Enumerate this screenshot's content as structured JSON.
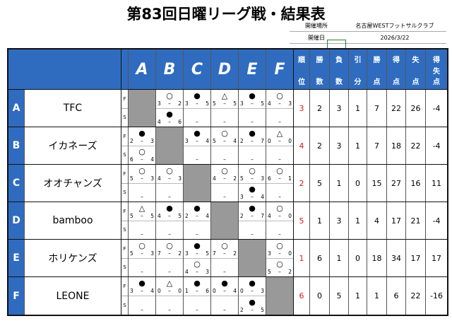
{
  "title": "第83回日曜リーグ戦・結果表",
  "info": [
    {
      "label": "開催場所",
      "value": "名古屋WESTフットサルクラブ"
    },
    {
      "label": "開催日",
      "value": "2026/3/22"
    }
  ],
  "header": {
    "opponents": [
      "A",
      "B",
      "C",
      "D",
      "E",
      "F"
    ],
    "stats": [
      [
        "順",
        "位"
      ],
      [
        "勝",
        "数"
      ],
      [
        "負",
        "数"
      ],
      [
        "引",
        "分"
      ],
      [
        "勝",
        "点"
      ],
      [
        "得",
        "点"
      ],
      [
        "失",
        "点"
      ],
      [
        "得",
        "失",
        "点"
      ]
    ]
  },
  "half_labels": [
    "F",
    "S"
  ],
  "dash": "–",
  "colors": {
    "header": "#2f6cc0",
    "rank": "#d0201a",
    "self_cell": "#999999"
  },
  "teams": [
    {
      "letter": "A",
      "name": "TFC",
      "results": [
        null,
        [
          [
            "○",
            "3",
            "2"
          ],
          [
            "●",
            "4",
            "6"
          ]
        ],
        [
          [
            "●",
            "3",
            "5"
          ],
          null
        ],
        [
          [
            "△",
            "5",
            "5"
          ],
          null
        ],
        [
          [
            "●",
            "3",
            "5"
          ],
          null
        ],
        [
          [
            "○",
            "4",
            "3"
          ],
          null
        ]
      ],
      "stats": [
        "3",
        "2",
        "3",
        "1",
        "7",
        "22",
        "26",
        "-4"
      ]
    },
    {
      "letter": "B",
      "name": "イカネーズ",
      "results": [
        [
          [
            "●",
            "2",
            "3"
          ],
          [
            "○",
            "6",
            "4"
          ]
        ],
        null,
        [
          [
            "●",
            "3",
            "4"
          ],
          null
        ],
        [
          [
            "○",
            "5",
            "4"
          ],
          null
        ],
        [
          [
            "●",
            "2",
            "7"
          ],
          null
        ],
        [
          [
            "△",
            "0",
            "0"
          ],
          null
        ]
      ],
      "stats": [
        "4",
        "2",
        "3",
        "1",
        "7",
        "18",
        "22",
        "-4"
      ]
    },
    {
      "letter": "C",
      "name": "オオチャンズ",
      "results": [
        [
          [
            "○",
            "5",
            "3"
          ],
          null
        ],
        [
          [
            "○",
            "4",
            "3"
          ],
          null
        ],
        null,
        [
          [
            "○",
            "4",
            "2"
          ],
          null
        ],
        [
          [
            "○",
            "5",
            "3"
          ],
          [
            "●",
            "3",
            "4"
          ]
        ],
        [
          [
            "○",
            "6",
            "1"
          ],
          null
        ]
      ],
      "stats": [
        "2",
        "5",
        "1",
        "0",
        "15",
        "27",
        "16",
        "11"
      ]
    },
    {
      "letter": "D",
      "name": "bamboo",
      "results": [
        [
          [
            "△",
            "5",
            "5"
          ],
          null
        ],
        [
          [
            "●",
            "4",
            "5"
          ],
          null
        ],
        [
          [
            "●",
            "2",
            "4"
          ],
          null
        ],
        null,
        [
          [
            "●",
            "2",
            "7"
          ],
          null
        ],
        [
          [
            "○",
            "4",
            "0"
          ],
          null
        ]
      ],
      "stats": [
        "5",
        "1",
        "3",
        "1",
        "4",
        "17",
        "21",
        "-4"
      ]
    },
    {
      "letter": "E",
      "name": "ホリケンズ",
      "results": [
        [
          [
            "○",
            "5",
            "3"
          ],
          null
        ],
        [
          [
            "○",
            "7",
            "2"
          ],
          null
        ],
        [
          [
            "●",
            "3",
            "5"
          ],
          [
            "○",
            "4",
            "3"
          ]
        ],
        [
          [
            "○",
            "7",
            "2"
          ],
          null
        ],
        null,
        [
          [
            "○",
            "3",
            "0"
          ],
          [
            "○",
            "5",
            "2"
          ]
        ]
      ],
      "stats": [
        "1",
        "6",
        "1",
        "0",
        "18",
        "34",
        "17",
        "17"
      ]
    },
    {
      "letter": "F",
      "name": "LEONE",
      "results": [
        [
          [
            "●",
            "3",
            "4"
          ],
          null
        ],
        [
          [
            "△",
            "0",
            "0"
          ],
          null
        ],
        [
          [
            "●",
            "1",
            "6"
          ],
          null
        ],
        [
          [
            "●",
            "0",
            "4"
          ],
          null
        ],
        [
          [
            "●",
            "0",
            "3"
          ],
          [
            "●",
            "2",
            "5"
          ]
        ],
        null
      ],
      "stats": [
        "6",
        "0",
        "5",
        "1",
        "1",
        "6",
        "22",
        "-16"
      ]
    }
  ]
}
